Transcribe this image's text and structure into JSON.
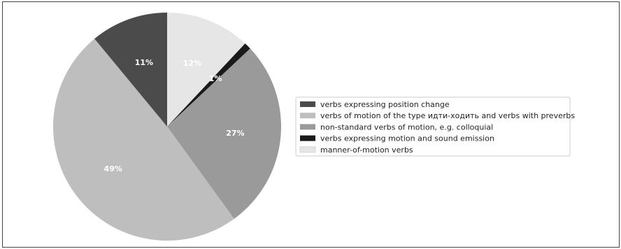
{
  "chart_data": {
    "type": "pie",
    "slices": [
      {
        "label": "manner-of-motion verbs",
        "value": 12,
        "value_label": "12%",
        "color": "#e6e6e6"
      },
      {
        "label": "verbs expressing motion and sound emission",
        "value": 1,
        "value_label": "1%",
        "color": "#1a1a1a"
      },
      {
        "label": "non-standard verbs of motion, e.g. colloquial",
        "value": 27,
        "value_label": "27%",
        "color": "#9a9a9a"
      },
      {
        "label": "verbs of motion of the type идти-ходить and verbs with preverbs",
        "value": 49,
        "value_label": "49%",
        "color": "#bebebe"
      },
      {
        "label": "verbs expressing position change",
        "value": 11,
        "value_label": "11%",
        "color": "#4b4b4b"
      }
    ],
    "legend": [
      {
        "label": "verbs expressing position change",
        "color": "#4b4b4b"
      },
      {
        "label": "verbs of motion of the type идти-ходить and verbs with preverbs",
        "color": "#bebebe"
      },
      {
        "label": "non-standard verbs of motion, e.g. colloquial",
        "color": "#9a9a9a"
      },
      {
        "label": "verbs expressing motion and sound emission",
        "color": "#1a1a1a"
      },
      {
        "label": "manner-of-motion verbs",
        "color": "#e6e6e6"
      }
    ],
    "legend_position": "right",
    "start_angle": "top, clockwise"
  }
}
